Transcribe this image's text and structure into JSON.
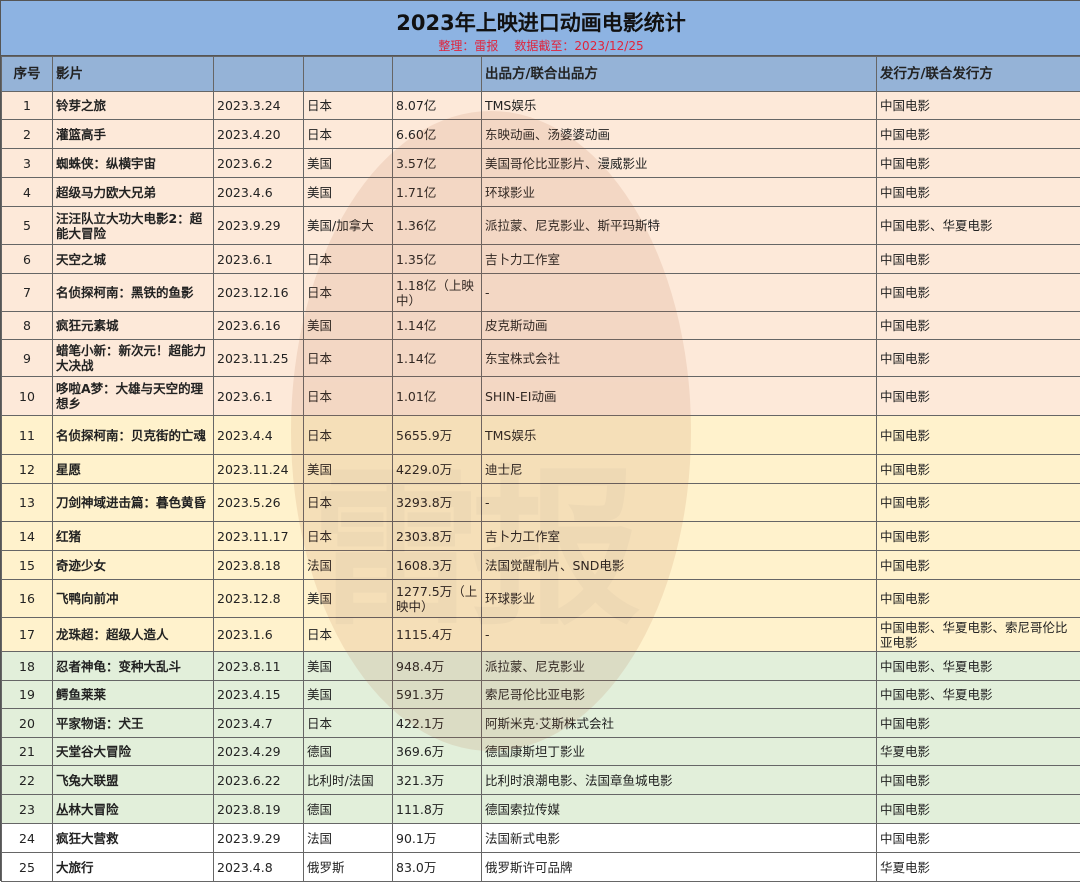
{
  "title": "2023年上映进口动画电影统计",
  "subtitle_left": "整理：雷报",
  "subtitle_right": "数据截至：2023/12/25",
  "watermark": "雷报",
  "headers": [
    "序号",
    "影片",
    "",
    "",
    "",
    "出品方/联合出品方",
    "发行方/联合发行方"
  ],
  "tiers": {
    "pink": "#fde9d9",
    "yellow": "#fff2cc",
    "green": "#e2efda",
    "white": "#ffffff"
  },
  "rows": [
    {
      "no": "1",
      "film": "铃芽之旅",
      "date": "2023.3.24",
      "country": "日本",
      "box": "8.07亿",
      "producer": "TMS娱乐",
      "distributor": "中国电影",
      "tier": "pink"
    },
    {
      "no": "2",
      "film": "灌篮高手",
      "date": "2023.4.20",
      "country": "日本",
      "box": "6.60亿",
      "producer": "东映动画、汤婆婆动画",
      "distributor": "中国电影",
      "tier": "pink"
    },
    {
      "no": "3",
      "film": "蜘蛛侠：纵横宇宙",
      "date": "2023.6.2",
      "country": "美国",
      "box": "3.57亿",
      "producer": "美国哥伦比亚影片、漫威影业",
      "distributor": "中国电影",
      "tier": "pink"
    },
    {
      "no": "4",
      "film": "超级马力欧大兄弟",
      "date": "2023.4.6",
      "country": "美国",
      "box": "1.71亿",
      "producer": "环球影业",
      "distributor": "中国电影",
      "tier": "pink"
    },
    {
      "no": "5",
      "film": "汪汪队立大功大电影2：超能大冒险",
      "date": "2023.9.29",
      "country": "美国/加拿大",
      "box": "1.36亿",
      "producer": "派拉蒙、尼克影业、斯平玛斯特",
      "distributor": "中国电影、华夏电影",
      "tier": "pink"
    },
    {
      "no": "6",
      "film": "天空之城",
      "date": "2023.6.1",
      "country": "日本",
      "box": "1.35亿",
      "producer": "吉卜力工作室",
      "distributor": "中国电影",
      "tier": "pink"
    },
    {
      "no": "7",
      "film": "名侦探柯南：黑铁的鱼影",
      "date": "2023.12.16",
      "country": "日本",
      "box": "1.18亿（上映中）",
      "producer": "-",
      "distributor": "中国电影",
      "tier": "pink"
    },
    {
      "no": "8",
      "film": "疯狂元素城",
      "date": "2023.6.16",
      "country": "美国",
      "box": "1.14亿",
      "producer": "皮克斯动画",
      "distributor": "中国电影",
      "tier": "pink"
    },
    {
      "no": "9",
      "film": "蜡笔小新：新次元！超能力大决战",
      "date": "2023.11.25",
      "country": "日本",
      "box": "1.14亿",
      "producer": "东宝株式会社",
      "distributor": "中国电影",
      "tier": "pink"
    },
    {
      "no": "10",
      "film": "哆啦A梦：大雄与天空的理想乡",
      "date": "2023.6.1",
      "country": "日本",
      "box": "1.01亿",
      "producer": "SHIN-EI动画",
      "distributor": "中国电影",
      "tier": "pink"
    },
    {
      "no": "11",
      "film": "名侦探柯南：贝克街的亡魂",
      "date": "2023.4.4",
      "country": "日本",
      "box": "5655.9万",
      "producer": "TMS娱乐",
      "distributor": "中国电影",
      "tier": "yellow"
    },
    {
      "no": "12",
      "film": "星愿",
      "date": "2023.11.24",
      "country": "美国",
      "box": "4229.0万",
      "producer": "迪士尼",
      "distributor": "中国电影",
      "tier": "yellow"
    },
    {
      "no": "13",
      "film": "刀剑神域进击篇：暮色黄昏",
      "date": "2023.5.26",
      "country": "日本",
      "box": "3293.8万",
      "producer": "-",
      "distributor": "中国电影",
      "tier": "yellow"
    },
    {
      "no": "14",
      "film": "红猪",
      "date": "2023.11.17",
      "country": "日本",
      "box": "2303.8万",
      "producer": "吉卜力工作室",
      "distributor": "中国电影",
      "tier": "yellow"
    },
    {
      "no": "15",
      "film": "奇迹少女",
      "date": "2023.8.18",
      "country": "法国",
      "box": "1608.3万",
      "producer": "法国觉醒制片、SND电影",
      "distributor": "中国电影",
      "tier": "yellow"
    },
    {
      "no": "16",
      "film": "飞鸭向前冲",
      "date": "2023.12.8",
      "country": "美国",
      "box": "1277.5万（上映中）",
      "producer": "环球影业",
      "distributor": "中国电影",
      "tier": "yellow"
    },
    {
      "no": "17",
      "film": "龙珠超：超级人造人",
      "date": "2023.1.6",
      "country": "日本",
      "box": "1115.4万",
      "producer": "-",
      "distributor": "中国电影、华夏电影、索尼哥伦比亚电影",
      "tier": "yellow"
    },
    {
      "no": "18",
      "film": "忍者神龟：变种大乱斗",
      "date": "2023.8.11",
      "country": "美国",
      "box": "948.4万",
      "producer": "派拉蒙、尼克影业",
      "distributor": "中国电影、华夏电影",
      "tier": "green"
    },
    {
      "no": "19",
      "film": "鳄鱼莱莱",
      "date": "2023.4.15",
      "country": "美国",
      "box": "591.3万",
      "producer": "索尼哥伦比亚电影",
      "distributor": "中国电影、华夏电影",
      "tier": "green"
    },
    {
      "no": "20",
      "film": "平家物语：犬王",
      "date": "2023.4.7",
      "country": "日本",
      "box": "422.1万",
      "producer": "阿斯米克·艾斯株式会社",
      "distributor": "中国电影",
      "tier": "green"
    },
    {
      "no": "21",
      "film": "天堂谷大冒险",
      "date": "2023.4.29",
      "country": "德国",
      "box": "369.6万",
      "producer": "德国康斯坦丁影业",
      "distributor": "华夏电影",
      "tier": "green"
    },
    {
      "no": "22",
      "film": "飞兔大联盟",
      "date": "2023.6.22",
      "country": "比利时/法国",
      "box": "321.3万",
      "producer": "比利时浪潮电影、法国章鱼城电影",
      "distributor": "中国电影",
      "tier": "green"
    },
    {
      "no": "23",
      "film": "丛林大冒险",
      "date": "2023.8.19",
      "country": "德国",
      "box": "111.8万",
      "producer": "德国索拉传媒",
      "distributor": "中国电影",
      "tier": "green"
    },
    {
      "no": "24",
      "film": "疯狂大营救",
      "date": "2023.9.29",
      "country": "法国",
      "box": "90.1万",
      "producer": "法国新式电影",
      "distributor": "中国电影",
      "tier": "white"
    },
    {
      "no": "25",
      "film": "大旅行",
      "date": "2023.4.8",
      "country": "俄罗斯",
      "box": "83.0万",
      "producer": "俄罗斯许可品牌",
      "distributor": "华夏电影",
      "tier": "white"
    }
  ]
}
